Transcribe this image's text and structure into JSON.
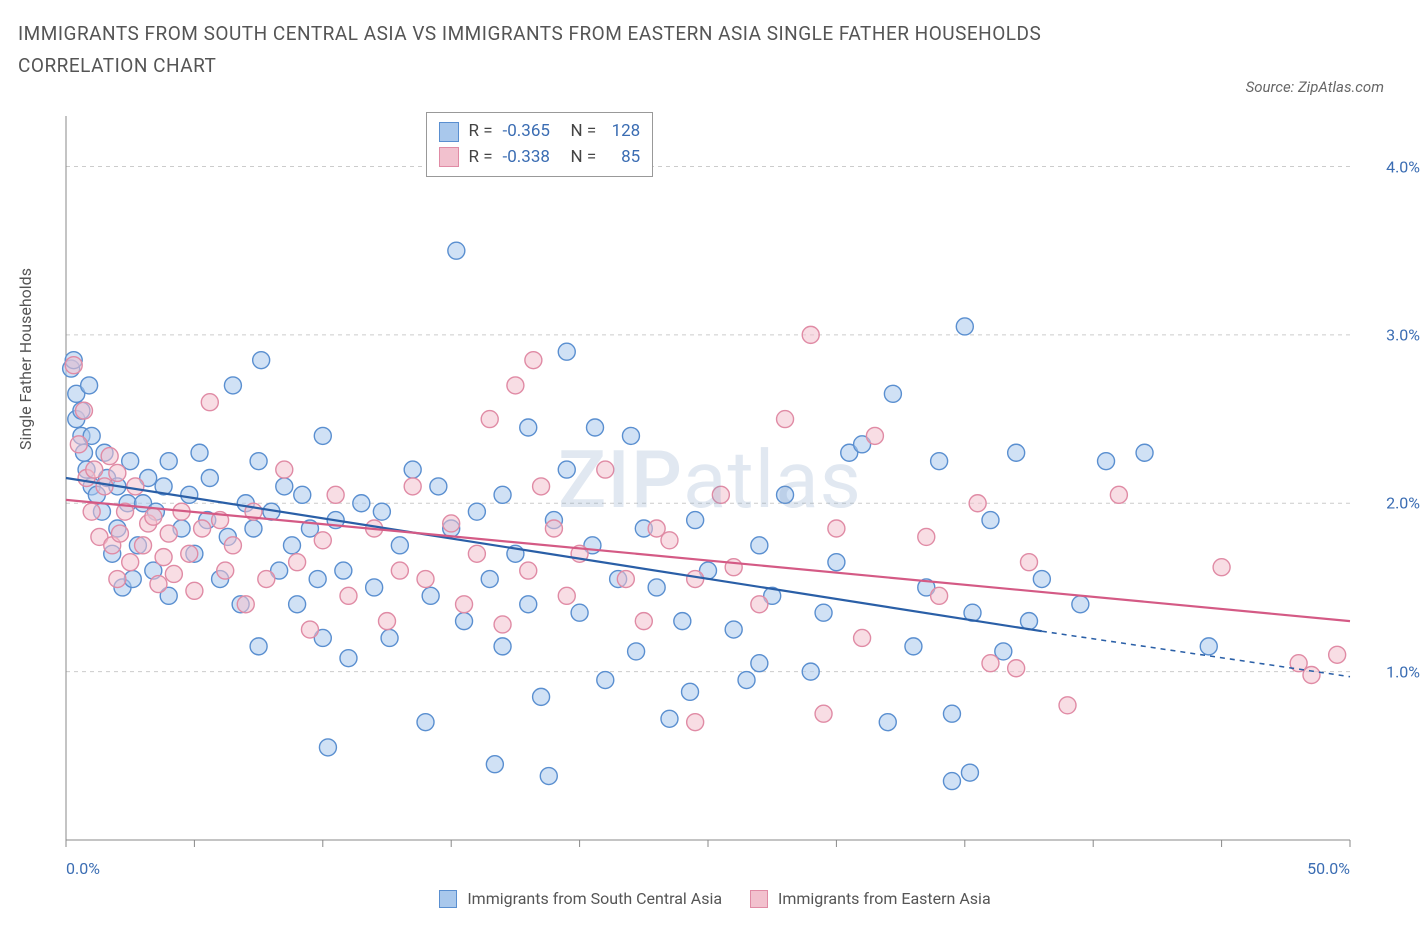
{
  "title": "IMMIGRANTS FROM SOUTH CENTRAL ASIA VS IMMIGRANTS FROM EASTERN ASIA SINGLE FATHER HOUSEHOLDS CORRELATION CHART",
  "source_label": "Source: ZipAtlas.com",
  "watermark_primary": "ZIP",
  "watermark_secondary": "atlas",
  "chart": {
    "type": "scatter",
    "ylabel": "Single Father Households",
    "xlim": [
      0,
      50
    ],
    "ylim": [
      0,
      4.3
    ],
    "x_tick_positions": [
      0,
      5,
      10,
      15,
      20,
      25,
      30,
      35,
      40,
      45,
      50
    ],
    "x_tick_labels_shown": {
      "0": "0.0%",
      "50": "50.0%"
    },
    "y_gridlines": [
      1.0,
      2.0,
      3.0,
      4.0
    ],
    "y_tick_labels": [
      "1.0%",
      "2.0%",
      "3.0%",
      "4.0%"
    ],
    "background_color": "#ffffff",
    "grid_color": "#cccccc",
    "grid_dash": "4 4",
    "axis_color": "#888888",
    "label_fontsize": 16,
    "title_fontsize": 19,
    "title_color": "#555555",
    "tick_label_color": "#3b6db3",
    "marker_radius": 8.5,
    "marker_stroke_width": 1.4,
    "trendline_width": 2.2,
    "series": [
      {
        "name": "Immigrants from South Central Asia",
        "fill": "#a9c8ec",
        "stroke": "#5a8fd0",
        "fill_opacity": 0.55,
        "trend": {
          "x1": 0,
          "y1": 2.15,
          "x2": 38,
          "y2": 1.24,
          "dash_x2": 50,
          "dash_y2": 0.97,
          "color": "#2a5fa7"
        },
        "R": "-0.365",
        "N": "128",
        "points": [
          [
            0.2,
            2.8
          ],
          [
            0.3,
            2.85
          ],
          [
            0.4,
            2.65
          ],
          [
            0.4,
            2.5
          ],
          [
            0.6,
            2.4
          ],
          [
            0.6,
            2.55
          ],
          [
            0.7,
            2.3
          ],
          [
            0.8,
            2.2
          ],
          [
            0.9,
            2.7
          ],
          [
            1.0,
            2.4
          ],
          [
            1.0,
            2.1
          ],
          [
            1.2,
            2.05
          ],
          [
            1.4,
            1.95
          ],
          [
            1.5,
            2.3
          ],
          [
            1.6,
            2.15
          ],
          [
            1.8,
            1.7
          ],
          [
            2.0,
            1.85
          ],
          [
            2.0,
            2.1
          ],
          [
            2.2,
            1.5
          ],
          [
            2.4,
            2.0
          ],
          [
            2.5,
            2.25
          ],
          [
            2.6,
            1.55
          ],
          [
            2.8,
            1.75
          ],
          [
            3.0,
            2.0
          ],
          [
            3.2,
            2.15
          ],
          [
            3.4,
            1.6
          ],
          [
            3.5,
            1.95
          ],
          [
            3.8,
            2.1
          ],
          [
            4.0,
            2.25
          ],
          [
            4.0,
            1.45
          ],
          [
            4.5,
            1.85
          ],
          [
            4.8,
            2.05
          ],
          [
            5.0,
            1.7
          ],
          [
            5.2,
            2.3
          ],
          [
            5.5,
            1.9
          ],
          [
            5.6,
            2.15
          ],
          [
            6.0,
            1.55
          ],
          [
            6.3,
            1.8
          ],
          [
            6.5,
            2.7
          ],
          [
            6.8,
            1.4
          ],
          [
            7.0,
            2.0
          ],
          [
            7.3,
            1.85
          ],
          [
            7.5,
            1.15
          ],
          [
            7.5,
            2.25
          ],
          [
            7.6,
            2.85
          ],
          [
            8.0,
            1.95
          ],
          [
            8.3,
            1.6
          ],
          [
            8.5,
            2.1
          ],
          [
            8.8,
            1.75
          ],
          [
            9.0,
            1.4
          ],
          [
            9.2,
            2.05
          ],
          [
            9.5,
            1.85
          ],
          [
            9.8,
            1.55
          ],
          [
            10.0,
            2.4
          ],
          [
            10.0,
            1.2
          ],
          [
            10.2,
            0.55
          ],
          [
            10.5,
            1.9
          ],
          [
            10.8,
            1.6
          ],
          [
            11.0,
            1.08
          ],
          [
            11.5,
            2.0
          ],
          [
            12.0,
            1.5
          ],
          [
            12.3,
            1.95
          ],
          [
            12.6,
            1.2
          ],
          [
            13.0,
            1.75
          ],
          [
            13.5,
            2.2
          ],
          [
            14.0,
            0.7
          ],
          [
            14.2,
            1.45
          ],
          [
            14.5,
            2.1
          ],
          [
            15.0,
            1.85
          ],
          [
            15.2,
            3.5
          ],
          [
            15.5,
            1.3
          ],
          [
            16.0,
            1.95
          ],
          [
            16.5,
            1.55
          ],
          [
            16.7,
            0.45
          ],
          [
            17.0,
            2.05
          ],
          [
            17.0,
            1.15
          ],
          [
            17.5,
            1.7
          ],
          [
            18.0,
            1.4
          ],
          [
            18.0,
            2.45
          ],
          [
            18.5,
            0.85
          ],
          [
            18.8,
            0.38
          ],
          [
            19.0,
            1.9
          ],
          [
            19.5,
            2.2
          ],
          [
            19.5,
            2.9
          ],
          [
            20.0,
            1.35
          ],
          [
            20.5,
            1.75
          ],
          [
            20.6,
            2.45
          ],
          [
            21.0,
            0.95
          ],
          [
            21.5,
            1.55
          ],
          [
            22.0,
            2.4
          ],
          [
            22.2,
            1.12
          ],
          [
            22.5,
            1.85
          ],
          [
            23.0,
            1.5
          ],
          [
            23.5,
            0.72
          ],
          [
            24.0,
            1.3
          ],
          [
            24.3,
            0.88
          ],
          [
            24.5,
            1.9
          ],
          [
            25.0,
            1.6
          ],
          [
            26.0,
            1.25
          ],
          [
            26.5,
            0.95
          ],
          [
            27.0,
            1.05
          ],
          [
            27.0,
            1.75
          ],
          [
            27.5,
            1.45
          ],
          [
            28.0,
            2.05
          ],
          [
            29.0,
            1.0
          ],
          [
            29.5,
            1.35
          ],
          [
            30.0,
            1.65
          ],
          [
            30.5,
            2.3
          ],
          [
            31.0,
            2.35
          ],
          [
            32.0,
            0.7
          ],
          [
            32.2,
            2.65
          ],
          [
            33.0,
            1.15
          ],
          [
            33.5,
            1.5
          ],
          [
            34.0,
            2.25
          ],
          [
            34.5,
            0.35
          ],
          [
            34.5,
            0.75
          ],
          [
            35.0,
            3.05
          ],
          [
            35.2,
            0.4
          ],
          [
            35.3,
            1.35
          ],
          [
            36.0,
            1.9
          ],
          [
            36.5,
            1.12
          ],
          [
            37.0,
            2.3
          ],
          [
            37.5,
            1.3
          ],
          [
            38.0,
            1.55
          ],
          [
            39.5,
            1.4
          ],
          [
            40.5,
            2.25
          ],
          [
            42.0,
            2.3
          ],
          [
            44.5,
            1.15
          ]
        ]
      },
      {
        "name": "Immigrants from Eastern Asia",
        "fill": "#f2c1ce",
        "stroke": "#e08ba5",
        "fill_opacity": 0.55,
        "trend": {
          "x1": 0,
          "y1": 2.02,
          "x2": 50,
          "y2": 1.3,
          "color": "#d45a85"
        },
        "R": "-0.338",
        "N": "85",
        "points": [
          [
            0.3,
            2.82
          ],
          [
            0.5,
            2.35
          ],
          [
            0.7,
            2.55
          ],
          [
            0.8,
            2.15
          ],
          [
            1.0,
            1.95
          ],
          [
            1.1,
            2.2
          ],
          [
            1.3,
            1.8
          ],
          [
            1.5,
            2.1
          ],
          [
            1.7,
            2.28
          ],
          [
            1.8,
            1.75
          ],
          [
            2.0,
            2.18
          ],
          [
            2.0,
            1.55
          ],
          [
            2.1,
            1.82
          ],
          [
            2.3,
            1.95
          ],
          [
            2.5,
            1.65
          ],
          [
            2.7,
            2.1
          ],
          [
            3.0,
            1.75
          ],
          [
            3.2,
            1.88
          ],
          [
            3.4,
            1.92
          ],
          [
            3.6,
            1.52
          ],
          [
            3.8,
            1.68
          ],
          [
            4.0,
            1.82
          ],
          [
            4.2,
            1.58
          ],
          [
            4.5,
            1.95
          ],
          [
            4.8,
            1.7
          ],
          [
            5.0,
            1.48
          ],
          [
            5.3,
            1.85
          ],
          [
            5.6,
            2.6
          ],
          [
            6.0,
            1.9
          ],
          [
            6.2,
            1.6
          ],
          [
            6.5,
            1.75
          ],
          [
            7.0,
            1.4
          ],
          [
            7.3,
            1.95
          ],
          [
            7.8,
            1.55
          ],
          [
            8.5,
            2.2
          ],
          [
            9.0,
            1.65
          ],
          [
            9.5,
            1.25
          ],
          [
            10.0,
            1.78
          ],
          [
            10.5,
            2.05
          ],
          [
            11.0,
            1.45
          ],
          [
            12.0,
            1.85
          ],
          [
            12.5,
            1.3
          ],
          [
            13.0,
            1.6
          ],
          [
            13.5,
            2.1
          ],
          [
            14.0,
            1.55
          ],
          [
            15.0,
            1.88
          ],
          [
            15.5,
            1.4
          ],
          [
            16.0,
            1.7
          ],
          [
            16.5,
            2.5
          ],
          [
            17.0,
            1.28
          ],
          [
            17.5,
            2.7
          ],
          [
            18.0,
            1.6
          ],
          [
            18.5,
            2.1
          ],
          [
            18.2,
            2.85
          ],
          [
            19.0,
            1.85
          ],
          [
            19.5,
            1.45
          ],
          [
            20.0,
            1.7
          ],
          [
            21.0,
            2.2
          ],
          [
            21.8,
            1.55
          ],
          [
            22.5,
            1.3
          ],
          [
            23.0,
            1.85
          ],
          [
            23.5,
            1.78
          ],
          [
            24.5,
            1.55
          ],
          [
            24.5,
            0.7
          ],
          [
            25.5,
            2.05
          ],
          [
            26.0,
            1.62
          ],
          [
            27.0,
            1.4
          ],
          [
            28.0,
            2.5
          ],
          [
            29.0,
            3.0
          ],
          [
            29.5,
            0.75
          ],
          [
            30.0,
            1.85
          ],
          [
            31.0,
            1.2
          ],
          [
            31.5,
            2.4
          ],
          [
            33.5,
            1.8
          ],
          [
            34.0,
            1.45
          ],
          [
            35.5,
            2.0
          ],
          [
            36.0,
            1.05
          ],
          [
            37.0,
            1.02
          ],
          [
            37.5,
            1.65
          ],
          [
            39.0,
            0.8
          ],
          [
            41.0,
            2.05
          ],
          [
            45.0,
            1.62
          ],
          [
            48.0,
            1.05
          ],
          [
            49.5,
            1.1
          ],
          [
            48.5,
            0.98
          ]
        ]
      }
    ]
  },
  "stats_box": {
    "r_label": "R =",
    "n_label": "N ="
  },
  "bottom_legend": {
    "series1": "Immigrants from South Central Asia",
    "series2": "Immigrants from Eastern Asia"
  }
}
